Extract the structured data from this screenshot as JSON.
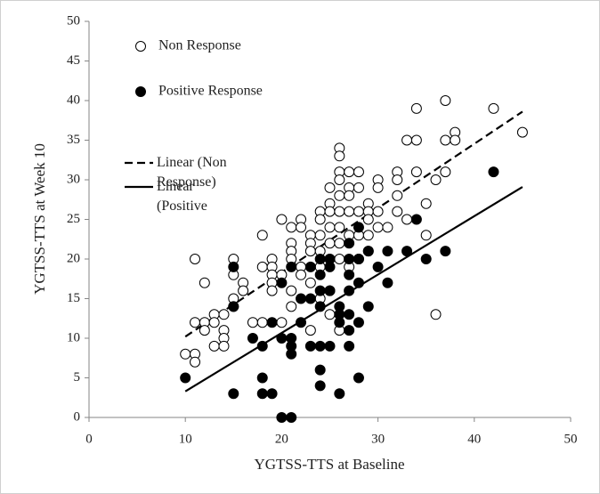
{
  "chart_data": {
    "type": "scatter",
    "xlabel": "YGTSS-TTS at Baseline",
    "ylabel": "YGTSS-TTS at Week 10",
    "xlim": [
      0,
      50
    ],
    "xticks": [
      0,
      10,
      20,
      30,
      40,
      50
    ],
    "ylim": [
      0,
      50
    ],
    "yticks": [
      0,
      5,
      10,
      15,
      20,
      25,
      30,
      35,
      40,
      45,
      50
    ],
    "legend": "upper left",
    "series": [
      {
        "name": "Non Response",
        "color": "#000000",
        "filled": false,
        "x": [
          10,
          11,
          11,
          11,
          11,
          12,
          12,
          12,
          13,
          13,
          13,
          14,
          14,
          14,
          14,
          15,
          15,
          15,
          15,
          16,
          16,
          17,
          18,
          18,
          18,
          19,
          19,
          19,
          19,
          19,
          20,
          20,
          20,
          21,
          21,
          21,
          21,
          21,
          21,
          22,
          22,
          22,
          22,
          23,
          23,
          23,
          23,
          23,
          24,
          24,
          24,
          24,
          24,
          24,
          25,
          25,
          25,
          25,
          25,
          25,
          25,
          25,
          26,
          26,
          26,
          26,
          26,
          26,
          26,
          26,
          26,
          26,
          27,
          27,
          27,
          27,
          27,
          27,
          28,
          28,
          28,
          28,
          28,
          29,
          29,
          29,
          29,
          29,
          30,
          30,
          30,
          30,
          31,
          32,
          32,
          32,
          32,
          33,
          33,
          34,
          34,
          34,
          35,
          35,
          36,
          36,
          37,
          37,
          37,
          38,
          38,
          42,
          45
        ],
        "values": [
          8,
          8,
          7,
          12,
          20,
          17,
          12,
          11,
          13,
          12,
          9,
          13,
          11,
          10,
          9,
          20,
          18,
          15,
          14,
          17,
          16,
          12,
          23,
          19,
          12,
          20,
          19,
          18,
          17,
          16,
          25,
          18,
          12,
          24,
          22,
          21,
          20,
          16,
          14,
          25,
          24,
          19,
          18,
          23,
          22,
          21,
          17,
          11,
          26,
          25,
          23,
          21,
          19,
          15,
          29,
          27,
          26,
          24,
          22,
          20,
          16,
          13,
          34,
          33,
          31,
          30,
          28,
          26,
          24,
          22,
          20,
          11,
          31,
          29,
          28,
          26,
          23,
          19,
          31,
          29,
          26,
          23,
          20,
          27,
          26,
          25,
          23,
          21,
          30,
          29,
          26,
          24,
          24,
          31,
          30,
          28,
          26,
          35,
          25,
          39,
          35,
          31,
          27,
          23,
          30,
          13,
          40,
          35,
          31,
          36,
          35,
          39,
          36
        ]
      },
      {
        "name": "Positive Response",
        "color": "#000000",
        "filled": true,
        "x": [
          10,
          15,
          15,
          15,
          17,
          18,
          18,
          18,
          19,
          19,
          20,
          20,
          20,
          21,
          21,
          21,
          21,
          21,
          22,
          22,
          23,
          23,
          23,
          24,
          24,
          24,
          24,
          24,
          24,
          24,
          25,
          25,
          25,
          25,
          26,
          26,
          26,
          26,
          27,
          27,
          27,
          27,
          27,
          27,
          27,
          28,
          28,
          28,
          28,
          28,
          29,
          29,
          30,
          31,
          31,
          33,
          34,
          35,
          37,
          42
        ],
        "values": [
          5,
          19,
          14,
          3,
          10,
          9,
          5,
          3,
          12,
          3,
          17,
          10,
          0,
          19,
          10,
          9,
          8,
          0,
          15,
          12,
          19,
          15,
          9,
          20,
          18,
          16,
          14,
          9,
          6,
          4,
          20,
          19,
          16,
          9,
          14,
          13,
          12,
          3,
          22,
          20,
          18,
          16,
          13,
          11,
          9,
          24,
          20,
          17,
          12,
          5,
          21,
          14,
          19,
          21,
          17,
          21,
          25,
          20,
          21,
          31
        ]
      }
    ],
    "trendlines": [
      {
        "name": "Linear (Non Response)",
        "dashed": true,
        "x": [
          10,
          45
        ],
        "values": [
          10.2,
          38.6
        ]
      },
      {
        "name": "Linear (Positive Response)",
        "dashed": false,
        "x": [
          10,
          45
        ],
        "values": [
          3.3,
          29.1
        ]
      }
    ]
  }
}
